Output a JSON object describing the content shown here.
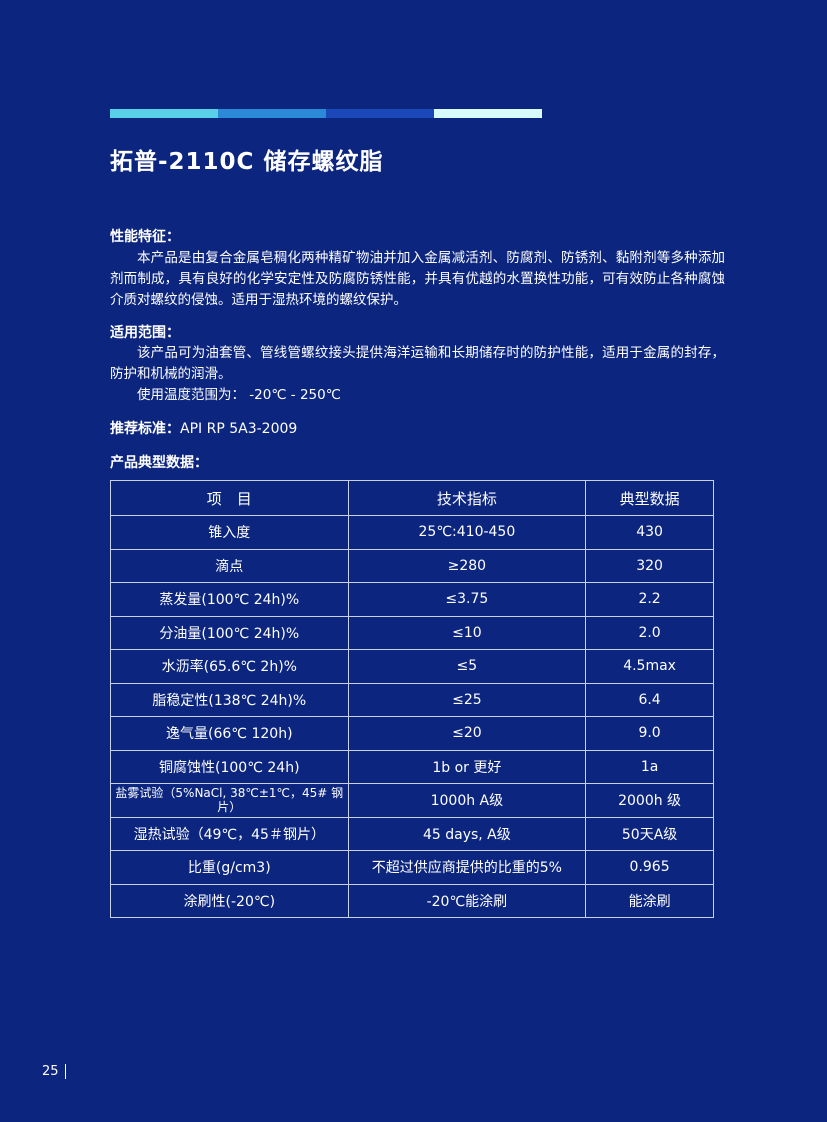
{
  "colors": {
    "background": "#0c2680",
    "bars": [
      "#5ad0e8",
      "#2a8ad8",
      "#1a48b8",
      "#d8fcfc"
    ]
  },
  "title": "拓普-2110C 储存螺纹脂",
  "features": {
    "heading": "性能特征：",
    "text": "本产品是由复合金属皂稠化两种精矿物油并加入金属减活剂、防腐剂、防锈剂、黏附剂等多种添加剂而制成，具有良好的化学安定性及防腐防锈性能，并具有优越的水置换性功能，可有效防止各种腐蚀介质对螺纹的侵蚀。适用于湿热环境的螺纹保护。"
  },
  "scope": {
    "heading": "适用范围：",
    "text": "该产品可为油套管、管线管螺纹接头提供海洋运输和长期储存时的防护性能，适用于金属的封存，防护和机械的润滑。",
    "temp": "使用温度范围为： -20℃ - 250℃"
  },
  "standard": {
    "heading": "推荐标准：",
    "value": "API RP 5A3-2009"
  },
  "data_heading": "产品典型数据：",
  "table": {
    "headers": [
      "项　目",
      "技术指标",
      "典型数据"
    ],
    "rows": [
      [
        "锥入度",
        "25℃:410-450",
        "430"
      ],
      [
        "滴点",
        "≥280",
        "320"
      ],
      [
        "蒸发量(100℃ 24h)%",
        "≤3.75",
        "2.2"
      ],
      [
        "分油量(100℃ 24h)%",
        "≤10",
        "2.0"
      ],
      [
        "水沥率(65.6℃ 2h)%",
        "≤5",
        "4.5max"
      ],
      [
        "脂稳定性(138℃ 24h)%",
        "≤25",
        "6.4"
      ],
      [
        "逸气量(66℃ 120h)",
        "≤20",
        "9.0"
      ],
      [
        "铜腐蚀性(100℃ 24h)",
        "1b or 更好",
        "1a"
      ],
      [
        "盐雾试验（5%NaCl, 38℃±1℃，45# 钢片）",
        "1000h A级",
        "2000h 级"
      ],
      [
        "湿热试验（49℃，45＃钢片）",
        "45 days, A级",
        "50天A级"
      ],
      [
        "比重(g/cm3)",
        "不超过供应商提供的比重的5%",
        "0.965"
      ],
      [
        "涂刷性(-20℃)",
        "-20℃能涂刷",
        "能涂刷"
      ]
    ]
  },
  "page_number": "25"
}
